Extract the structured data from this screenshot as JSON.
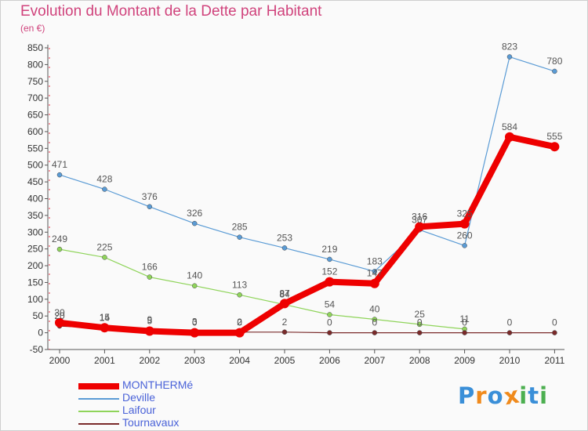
{
  "chart_data": {
    "type": "line",
    "title": "Evolution du Montant de la Dette par Habitant",
    "subtitle": "(en €)",
    "x": [
      "2000",
      "2001",
      "2002",
      "2003",
      "2004",
      "2005",
      "2006",
      "2007",
      "2008",
      "2009",
      "2010",
      "2011"
    ],
    "ylim": [
      -50,
      850
    ],
    "yticks": [
      -50,
      0,
      50,
      100,
      150,
      200,
      250,
      300,
      350,
      400,
      450,
      500,
      550,
      600,
      650,
      700,
      750,
      800,
      850
    ],
    "grid": false,
    "legend_position": "bottom-left",
    "series": [
      {
        "name": "Deville",
        "color": "#5a9bd5",
        "values": [
          471,
          428,
          376,
          326,
          285,
          253,
          219,
          183,
          307,
          260,
          823,
          780
        ],
        "labels": [
          "471",
          "428",
          "376",
          "326",
          "285",
          "253",
          "219",
          "183",
          "307",
          "260",
          "823",
          "780"
        ]
      },
      {
        "name": "Laifour",
        "color": "#8fd45a",
        "values": [
          249,
          225,
          166,
          140,
          113,
          84,
          54,
          40,
          25,
          11,
          null,
          null
        ],
        "labels": [
          "249",
          "225",
          "166",
          "140",
          "113",
          "84",
          "54",
          "40",
          "25",
          "11",
          "",
          ""
        ]
      },
      {
        "name": "Tournavaux",
        "color": "#7a2a2a",
        "values": [
          20,
          14,
          9,
          3,
          2,
          2,
          0,
          0,
          0,
          0,
          0,
          0
        ],
        "labels": [
          "20",
          "14",
          "9",
          "3",
          "2",
          "2",
          "0",
          "0",
          "0",
          "0",
          "0",
          "0"
        ]
      },
      {
        "name": "MONTHERMé",
        "color": "#ee0000",
        "values": [
          30,
          15,
          5,
          0,
          0,
          87,
          152,
          147,
          316,
          325,
          584,
          555
        ],
        "labels": [
          "30",
          "15",
          "5",
          "0",
          "0",
          "87",
          "152",
          "147",
          "316",
          "325",
          "584",
          "555"
        ]
      }
    ],
    "legend_order": [
      "MONTHERMé",
      "Deville",
      "Laifour",
      "Tournavaux"
    ]
  },
  "logo": {
    "text": "Proxiti",
    "letters": [
      "P",
      "r",
      "o",
      "x",
      "i",
      "t",
      "i"
    ],
    "colors": [
      "#3a8fd8",
      "#f08a1c",
      "#3a8fd8",
      "#f08a1c",
      "#4caf50",
      "#3a8fd8",
      "#4caf50"
    ]
  }
}
